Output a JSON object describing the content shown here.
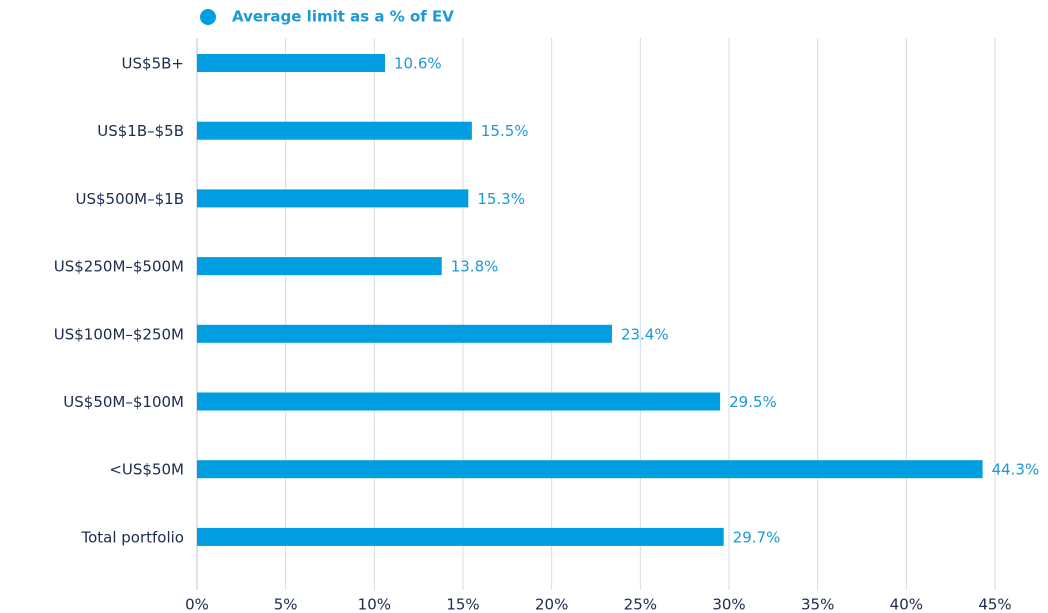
{
  "chart_data": {
    "type": "bar",
    "orientation": "horizontal",
    "categories": [
      "US$5B+",
      "US$1B–$5B",
      "US$500M–$1B",
      "US$250M–$500M",
      "US$100M–$250M",
      "US$50M–$100M",
      "<US$50M",
      "Total portfolio"
    ],
    "series": [
      {
        "name": "Average limit as a % of EV",
        "color": "#009ee0",
        "values": [
          10.6,
          15.5,
          15.3,
          13.8,
          23.4,
          29.5,
          44.3,
          29.7
        ],
        "value_labels": [
          "10.6%",
          "15.5%",
          "15.3%",
          "13.8%",
          "23.4%",
          "29.5%",
          "44.3%",
          "29.7%"
        ]
      }
    ],
    "xlim": [
      0,
      45
    ],
    "xticks": [
      {
        "value": 0,
        "label": "0%"
      },
      {
        "value": 5,
        "label": "5%"
      },
      {
        "value": 10,
        "label": "10%"
      },
      {
        "value": 15,
        "label": "15%"
      },
      {
        "value": 20,
        "label": "20%"
      },
      {
        "value": 25,
        "label": "25%"
      },
      {
        "value": 30,
        "label": "30%"
      },
      {
        "value": 35,
        "label": "35%"
      },
      {
        "value": 40,
        "label": "40%"
      },
      {
        "value": 45,
        "label": "45%"
      }
    ],
    "grid": true,
    "legend": "top"
  }
}
